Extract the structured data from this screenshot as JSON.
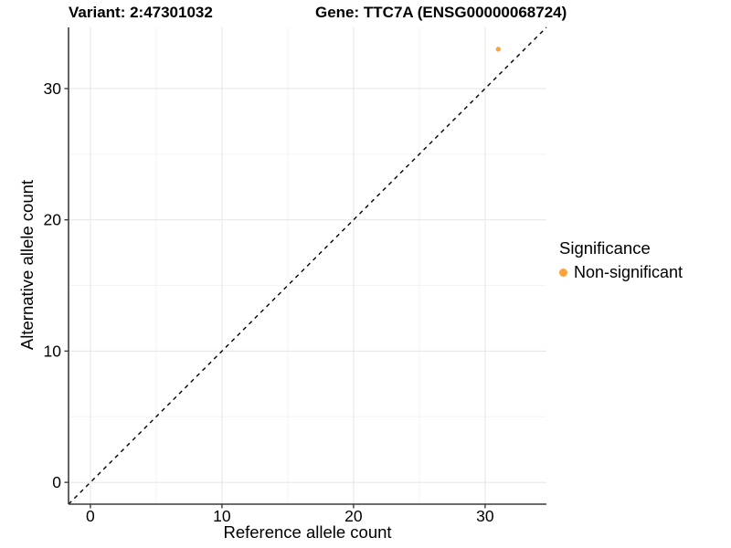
{
  "title": {
    "variant": "Variant: 2:47301032",
    "gene": "Gene: TTC7A (ENSG00000068724)"
  },
  "legend": {
    "title": "Significance",
    "items": [
      {
        "label": "Non-significant",
        "color": "#FAA43A"
      }
    ]
  },
  "chart_data": {
    "type": "scatter",
    "title_left": "Variant: 2:47301032",
    "title_right": "Gene: TTC7A (ENSG00000068724)",
    "xlabel": "Reference allele count",
    "ylabel": "Alternative allele count",
    "points": [
      {
        "x": 31,
        "y": 33,
        "series": "Non-significant"
      }
    ],
    "point_color": "#FAA43A",
    "point_radius": 2.7,
    "xlim": [
      -1.66,
      34.66
    ],
    "ylim": [
      -1.66,
      34.66
    ],
    "xticks": [
      0,
      10,
      20,
      30
    ],
    "yticks": [
      0,
      10,
      20,
      30
    ],
    "xminor": [
      5,
      15,
      25
    ],
    "yminor": [
      5,
      15,
      25
    ],
    "abline": {
      "slope": 1,
      "intercept": 0,
      "linetype": "dashed",
      "color": "#000000"
    },
    "grid": true,
    "grid_major_color": "#E7E7E7",
    "grid_minor_color": "#F4F4F4",
    "axis_color": "#3C3C3C",
    "tick_label_color": "#000000",
    "legend_position": "right"
  }
}
